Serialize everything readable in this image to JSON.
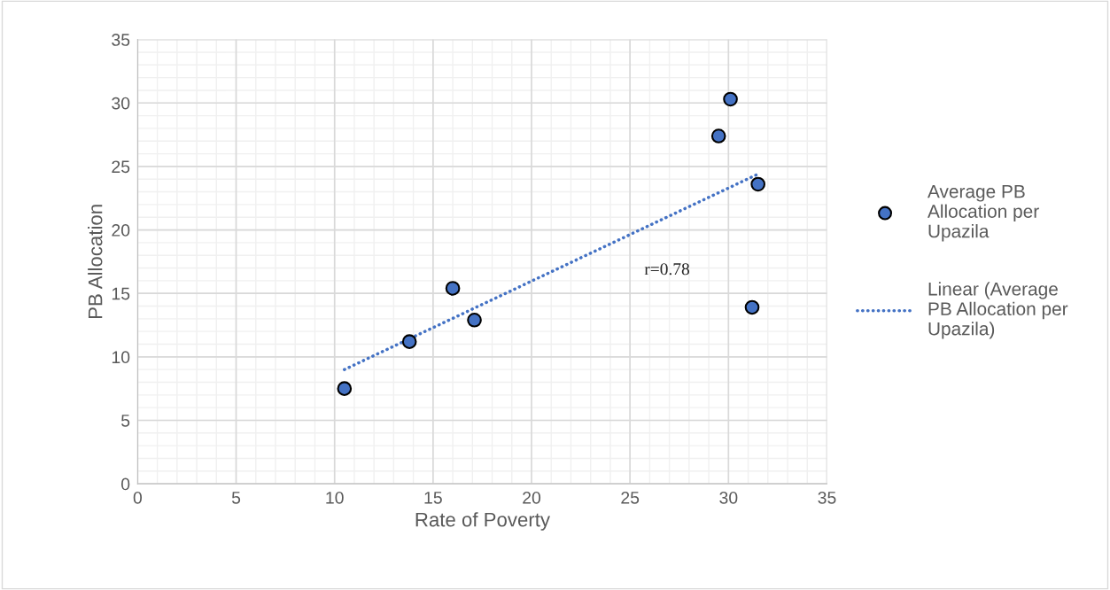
{
  "chart_data": {
    "type": "scatter",
    "xlabel": "Rate of Poverty",
    "ylabel": "PB Allocation",
    "annotations": [
      "r=0.78"
    ],
    "series": [
      {
        "name": "Average PB Allocation per Upazila",
        "color": "#4472c4",
        "marker": "circle",
        "x": [
          10.5,
          13.8,
          16.0,
          17.1,
          29.5,
          30.1,
          31.5,
          31.2
        ],
        "values": [
          7.5,
          11.2,
          15.4,
          12.9,
          27.4,
          30.3,
          23.6,
          13.9
        ]
      },
      {
        "name": "Linear (Average PB Allocation per Upazila)",
        "type": "line",
        "color": "#4472c4",
        "line_style": "dotted",
        "marker": "none",
        "x": [
          10.5,
          31.5
        ],
        "values": [
          9.0,
          24.4
        ]
      }
    ],
    "xlim": [
      0,
      35
    ],
    "xticks": [
      0,
      5,
      10,
      15,
      20,
      25,
      30,
      35
    ],
    "ylim": [
      0,
      35
    ],
    "yticks": [
      0,
      5,
      10,
      15,
      20,
      25,
      30,
      35
    ],
    "grid": true,
    "legend": "right"
  }
}
